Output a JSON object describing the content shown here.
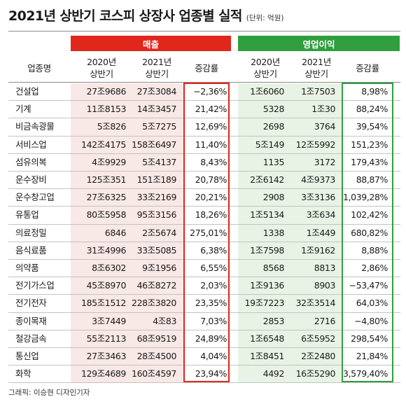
{
  "title": "2021년 상반기 코스피 상장사 업종별 실적",
  "unit": "(단위: 억원)",
  "sections": {
    "sales": "매출",
    "operating_profit": "영업이익"
  },
  "headers": {
    "industry": "업종명",
    "sales_2020": "2020년\n상반기",
    "sales_2021": "2021년\n상반기",
    "sales_change": "증감률",
    "op_2020": "2020년\n상반기",
    "op_2021": "2021년\n상반기",
    "op_change": "증감률"
  },
  "credit": "그래픽: 이승현 디자인기자",
  "colors": {
    "sales_accent": "#e1261c",
    "op_accent": "#2f9e3f",
    "sales_bg": "#f8e8e6",
    "op_bg": "#e8f3e6"
  },
  "chart_data": {
    "type": "table",
    "columns": [
      "업종명",
      "매출 2020년 상반기",
      "매출 2021년 상반기",
      "매출 증감률",
      "영업이익 2020년 상반기",
      "영업이익 2021년 상반기",
      "영업이익 증감률"
    ],
    "rows": [
      [
        "건설업",
        "27조9686",
        "27조3084",
        "−2,36%",
        "1조6060",
        "1조7503",
        "8,98%"
      ],
      [
        "기계",
        "11조8153",
        "14조3457",
        "21,42%",
        "5328",
        "1조30",
        "88,24%"
      ],
      [
        "비금속광물",
        "5조826",
        "5조7275",
        "12,69%",
        "2698",
        "3764",
        "39,54%"
      ],
      [
        "서비스업",
        "142조4175",
        "158조6497",
        "11,40%",
        "5조149",
        "12조5992",
        "151,23%"
      ],
      [
        "섬유의복",
        "4조9929",
        "5조4137",
        "8,43%",
        "1135",
        "3172",
        "179,43%"
      ],
      [
        "운수장비",
        "125조351",
        "151조189",
        "20,78%",
        "2조6142",
        "4조9373",
        "88,87%"
      ],
      [
        "운수창고업",
        "27조6325",
        "33조2169",
        "20,21%",
        "2908",
        "3조3136",
        "1,039,28%"
      ],
      [
        "유통업",
        "80조5958",
        "95조3156",
        "18,26%",
        "1조5134",
        "3조634",
        "102,42%"
      ],
      [
        "의료정밀",
        "6846",
        "2조5674",
        "275,01%",
        "1338",
        "1조449",
        "680,82%"
      ],
      [
        "음식료품",
        "31조4996",
        "33조5085",
        "6,38%",
        "1조7598",
        "1조9162",
        "8,88%"
      ],
      [
        "의약품",
        "8조6302",
        "9조1956",
        "6,55%",
        "8568",
        "8813",
        "2,86%"
      ],
      [
        "전기가스업",
        "45조8970",
        "46조8272",
        "2,03%",
        "1조9136",
        "8903",
        "−53,47%"
      ],
      [
        "전기전자",
        "185조1512",
        "228조3820",
        "23,35%",
        "19조7223",
        "32조3514",
        "64,03%"
      ],
      [
        "종이목재",
        "3조7449",
        "4조83",
        "7,03%",
        "2853",
        "2716",
        "−4,80%"
      ],
      [
        "철강금속",
        "55조2113",
        "68조9519",
        "24,89%",
        "1조6548",
        "6조5952",
        "298,54%"
      ],
      [
        "통신업",
        "27조3463",
        "28조4500",
        "4,04%",
        "1조8451",
        "2조2480",
        "21,84%"
      ],
      [
        "화학",
        "129조4689",
        "160조4597",
        "23,94%",
        "4492",
        "16조5290",
        "3,579,40%"
      ]
    ]
  }
}
